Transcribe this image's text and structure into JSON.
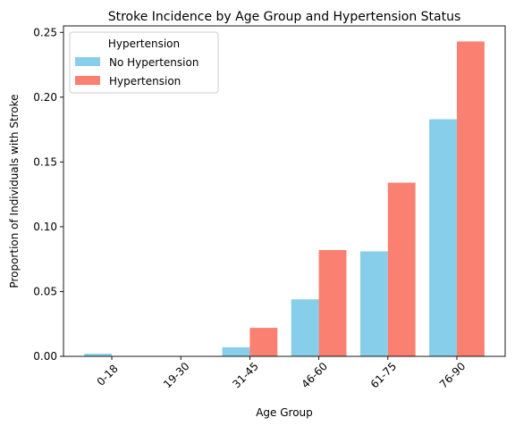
{
  "chart_data": {
    "type": "bar",
    "title": "Stroke Incidence by Age Group and Hypertension Status",
    "xlabel": "Age Group",
    "ylabel": "Proportion of Individuals with Stroke",
    "categories": [
      "0-18",
      "19-30",
      "31-45",
      "46-60",
      "61-75",
      "76-90"
    ],
    "series": [
      {
        "name": "No Hypertension",
        "color": "#87ceeb",
        "values": [
          0.002,
          0.0,
          0.007,
          0.044,
          0.081,
          0.183
        ]
      },
      {
        "name": "Hypertension",
        "color": "#fa8072",
        "values": [
          0.0,
          0.0,
          0.022,
          0.082,
          0.134,
          0.243
        ]
      }
    ],
    "ylim": [
      0,
      0.255
    ],
    "yticks": [
      0.0,
      0.05,
      0.1,
      0.15,
      0.2,
      0.25
    ],
    "ytick_labels": [
      "0.00",
      "0.05",
      "0.10",
      "0.15",
      "0.20",
      "0.25"
    ],
    "grid": false,
    "legend": {
      "title": "Hypertension",
      "placement": "top-left"
    }
  }
}
